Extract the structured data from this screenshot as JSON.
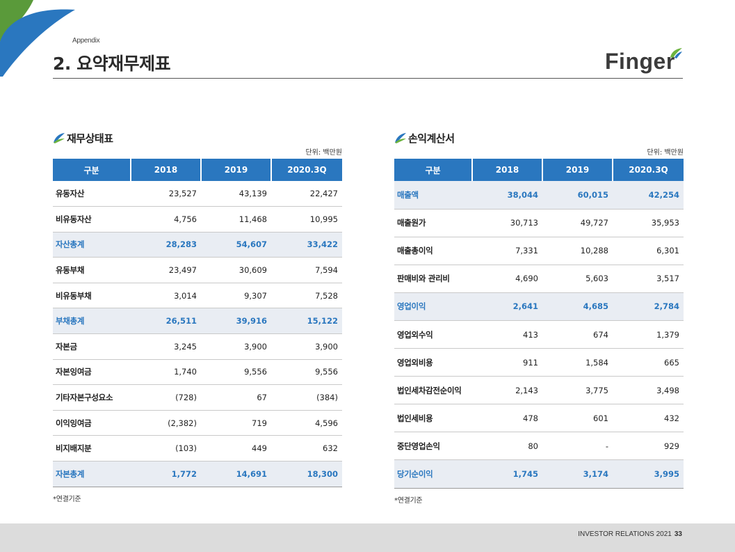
{
  "header": {
    "appendix": "Appendix",
    "title": "2. 요약재무제표",
    "logo_text": "Finger"
  },
  "colors": {
    "accent": "#2a77bf",
    "highlight_row": "#e9edf3",
    "leaf_green": "#6cb33f"
  },
  "balance_sheet": {
    "title": "재무상태표",
    "unit": "단위: 백만원",
    "columns": [
      "구분",
      "2018",
      "2019",
      "2020.3Q"
    ],
    "rows": [
      {
        "label": "유동자산",
        "values": [
          "23,527",
          "43,139",
          "22,427"
        ],
        "highlight": false
      },
      {
        "label": "비유동자산",
        "values": [
          "4,756",
          "11,468",
          "10,995"
        ],
        "highlight": false
      },
      {
        "label": "자산총계",
        "values": [
          "28,283",
          "54,607",
          "33,422"
        ],
        "highlight": true
      },
      {
        "label": "유동부채",
        "values": [
          "23,497",
          "30,609",
          "7,594"
        ],
        "highlight": false
      },
      {
        "label": "비유동부채",
        "values": [
          "3,014",
          "9,307",
          "7,528"
        ],
        "highlight": false
      },
      {
        "label": "부채총계",
        "values": [
          "26,511",
          "39,916",
          "15,122"
        ],
        "highlight": true
      },
      {
        "label": "자본금",
        "values": [
          "3,245",
          "3,900",
          "3,900"
        ],
        "highlight": false
      },
      {
        "label": "자본잉여금",
        "values": [
          "1,740",
          "9,556",
          "9,556"
        ],
        "highlight": false
      },
      {
        "label": "기타자본구성요소",
        "values": [
          "(728)",
          "67",
          "(384)"
        ],
        "highlight": false
      },
      {
        "label": "이익잉여금",
        "values": [
          "(2,382)",
          "719",
          "4,596"
        ],
        "highlight": false
      },
      {
        "label": "비지배지분",
        "values": [
          "(103)",
          "449",
          "632"
        ],
        "highlight": false
      },
      {
        "label": "자본총계",
        "values": [
          "1,772",
          "14,691",
          "18,300"
        ],
        "highlight": true
      }
    ],
    "note": "*연결기준"
  },
  "income_statement": {
    "title": "손익계산서",
    "unit": "단위: 백만원",
    "columns": [
      "구분",
      "2018",
      "2019",
      "2020.3Q"
    ],
    "rows": [
      {
        "label": "매출액",
        "values": [
          "38,044",
          "60,015",
          "42,254"
        ],
        "highlight": true
      },
      {
        "label": "매출원가",
        "values": [
          "30,713",
          "49,727",
          "35,953"
        ],
        "highlight": false
      },
      {
        "label": "매출총이익",
        "values": [
          "7,331",
          "10,288",
          "6,301"
        ],
        "highlight": false
      },
      {
        "label": "판매비와 관리비",
        "values": [
          "4,690",
          "5,603",
          "3,517"
        ],
        "highlight": false
      },
      {
        "label": "영업이익",
        "values": [
          "2,641",
          "4,685",
          "2,784"
        ],
        "highlight": true
      },
      {
        "label": "영업외수익",
        "values": [
          "413",
          "674",
          "1,379"
        ],
        "highlight": false
      },
      {
        "label": "영업외비용",
        "values": [
          "911",
          "1,584",
          "665"
        ],
        "highlight": false
      },
      {
        "label": "법인세차감전순이익",
        "values": [
          "2,143",
          "3,775",
          "3,498"
        ],
        "highlight": false
      },
      {
        "label": "법인세비용",
        "values": [
          "478",
          "601",
          "432"
        ],
        "highlight": false
      },
      {
        "label": "중단영업손익",
        "values": [
          "80",
          "-",
          "929"
        ],
        "highlight": false
      },
      {
        "label": "당기순이익",
        "values": [
          "1,745",
          "3,174",
          "3,995"
        ],
        "highlight": true
      }
    ],
    "note": "*연결기준"
  },
  "footer": {
    "text": "INVESTOR RELATIONS 2021",
    "page": "33"
  }
}
